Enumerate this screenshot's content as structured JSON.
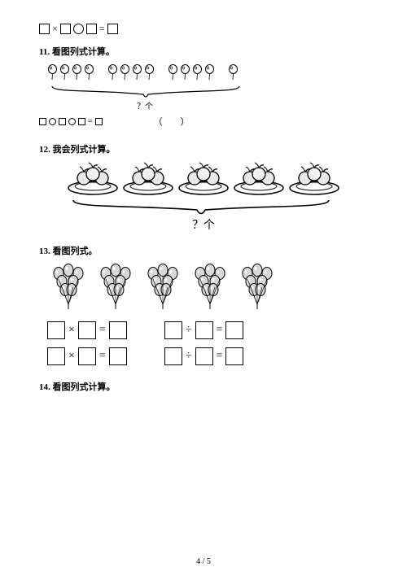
{
  "top_equation": {
    "parts": [
      "□",
      "×",
      "□",
      "○",
      "□",
      "=",
      "□"
    ]
  },
  "q11": {
    "num": "11.",
    "title": "看图列式计算。",
    "balloon_groups": [
      4,
      4,
      4,
      1
    ],
    "brace": {
      "label": "？个",
      "color": "#000"
    },
    "blank_eq": {
      "parts": [
        "□",
        "○",
        "□",
        "○",
        "□",
        "=",
        "□"
      ]
    },
    "paren": "（　　）"
  },
  "q12": {
    "num": "12.",
    "title": "我会列式计算。",
    "plate_count": 5,
    "fruits_per_plate": 3,
    "brace": {
      "label": "？个",
      "color": "#000"
    }
  },
  "q13": {
    "num": "13.",
    "title": "看图列式。",
    "bunch_count": 5,
    "balloons_per_bunch": 7,
    "left_ops": [
      "×",
      "×"
    ],
    "right_ops": [
      "÷",
      "÷"
    ],
    "eq": "="
  },
  "q14": {
    "num": "14.",
    "title": "看图列式计算。"
  },
  "page": {
    "current": "4",
    "sep": " / ",
    "total": "5"
  },
  "styling": {
    "text_color": "#000000",
    "bg": "#ffffff",
    "box_border": "#000000",
    "font": "SimSun"
  }
}
